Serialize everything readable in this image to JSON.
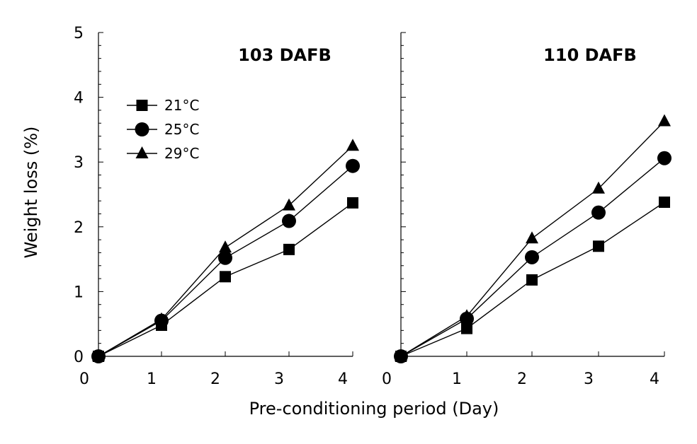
{
  "chart_data": {
    "type": "line",
    "ylabel": "Weight loss (%)",
    "xlabel": "Pre-conditioning period (Day)",
    "ylim": [
      0,
      5
    ],
    "yticks": [
      "0",
      "1",
      "2",
      "3",
      "4",
      "5"
    ],
    "xlim": [
      0,
      4
    ],
    "xticks": [
      "0",
      "1",
      "2",
      "3",
      "4"
    ],
    "legend": {
      "position": "top-left",
      "entries": [
        {
          "label": "21°C",
          "marker": "square"
        },
        {
          "label": "25°C",
          "marker": "circle"
        },
        {
          "label": "29°C",
          "marker": "triangle"
        }
      ]
    },
    "panels": [
      {
        "title": "103 DAFB",
        "x": [
          0,
          1,
          2,
          3,
          4
        ],
        "series": [
          {
            "name": "21°C",
            "marker": "square",
            "values": [
              0,
              0.48,
              1.23,
              1.65,
              2.37
            ]
          },
          {
            "name": "25°C",
            "marker": "circle",
            "values": [
              0,
              0.55,
              1.52,
              2.09,
              2.94
            ]
          },
          {
            "name": "29°C",
            "marker": "triangle",
            "values": [
              0,
              0.57,
              1.68,
              2.33,
              3.25
            ]
          }
        ]
      },
      {
        "title": "110 DAFB",
        "x": [
          0,
          1,
          2,
          3,
          4
        ],
        "series": [
          {
            "name": "21°C",
            "marker": "square",
            "values": [
              0,
              0.43,
              1.18,
              1.7,
              2.38
            ]
          },
          {
            "name": "25°C",
            "marker": "circle",
            "values": [
              0,
              0.58,
              1.53,
              2.22,
              3.06
            ]
          },
          {
            "name": "29°C",
            "marker": "triangle",
            "values": [
              0,
              0.62,
              1.82,
              2.59,
              3.63
            ]
          }
        ]
      }
    ]
  }
}
